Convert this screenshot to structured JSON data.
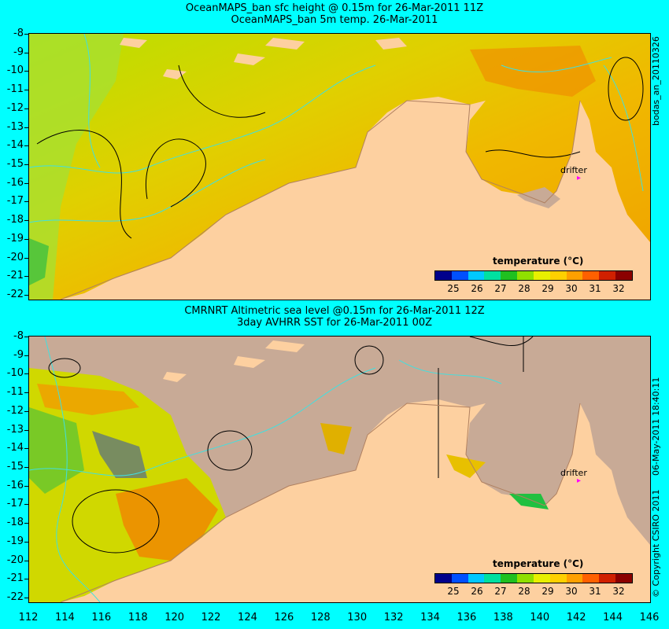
{
  "top": {
    "title_line1": "OceanMAPS_ban sfc height @ 0.15m for 26-Mar-2011 11Z",
    "title_line2": "OceanMAPS_ban 5m temp. 26-Mar-2011",
    "side_label": "bodas_an_20110326",
    "legend_title": "temperature (°C)",
    "drifter_label": "drifter"
  },
  "bottom": {
    "title_line1": "CMRNRT Altimetric sea level  @0.15m  for 26-Mar-2011 12Z",
    "title_line2": "3day AVHRR SST for 26-Mar-2011 00Z",
    "side_label": "06-May-2011 18:40:11",
    "copyright": "© Copyright CSIRO 2011",
    "legend_title": "temperature (°C)",
    "drifter_label": "drifter"
  },
  "y_ticks": [
    "-8",
    "-9",
    "-10",
    "-11",
    "-12",
    "-13",
    "-14",
    "-15",
    "-16",
    "-17",
    "-18",
    "-19",
    "-20",
    "-21",
    "-22"
  ],
  "x_ticks": [
    "112",
    "114",
    "116",
    "118",
    "120",
    "122",
    "124",
    "126",
    "128",
    "130",
    "132",
    "134",
    "136",
    "138",
    "140",
    "142",
    "144",
    "146"
  ],
  "colorbar": {
    "labels": [
      "25",
      "26",
      "27",
      "28",
      "29",
      "30",
      "31",
      "32"
    ],
    "colors": [
      "#00008b",
      "#0050ff",
      "#00c8ff",
      "#00e0a0",
      "#20c020",
      "#90e000",
      "#e8f000",
      "#ffd000",
      "#ffa000",
      "#ff6000",
      "#d02000",
      "#8b0000"
    ]
  },
  "colors": {
    "background": "#00ffff",
    "land": "#fdd0a0",
    "no_data": "#c8aa96",
    "ocean_warm": "#e8c000",
    "contour": "#40e0e0"
  }
}
